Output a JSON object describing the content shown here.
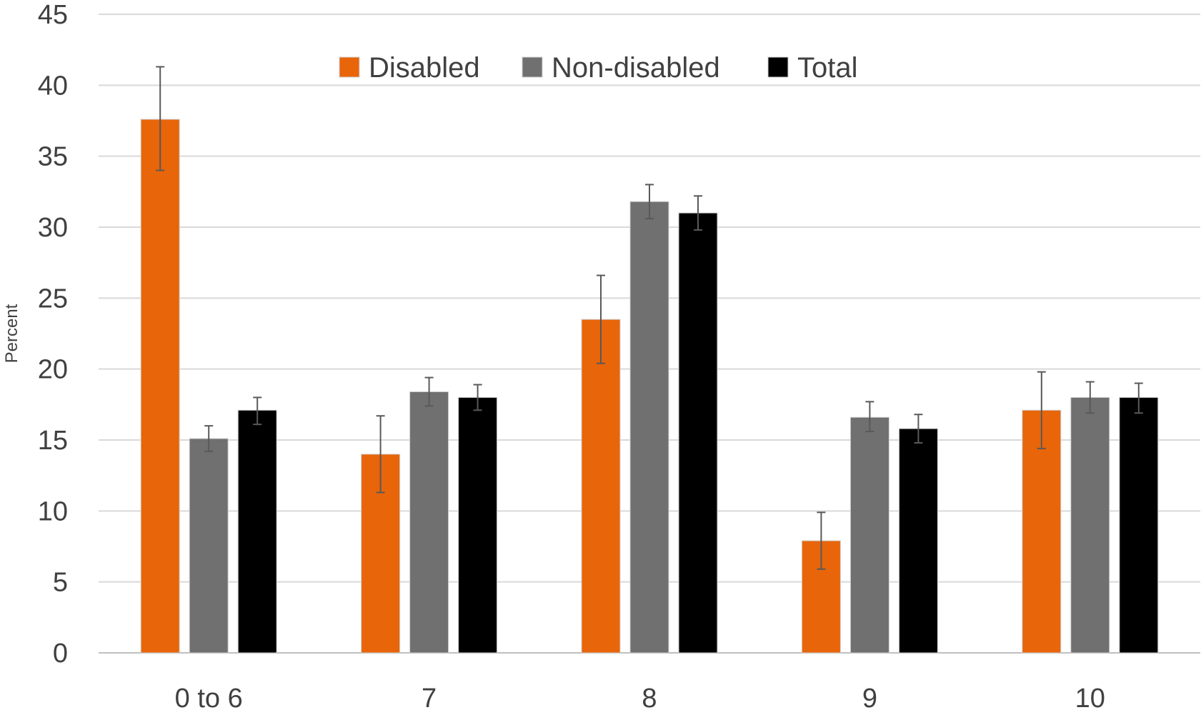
{
  "chart_data": {
    "type": "bar",
    "title": "",
    "xlabel": "",
    "ylabel": "Percent",
    "ylim": [
      0,
      45
    ],
    "yticks": [
      0,
      5,
      10,
      15,
      20,
      25,
      30,
      35,
      40,
      45
    ],
    "grid": true,
    "legend_position": "top",
    "categories": [
      "0 to 6",
      "7",
      "8",
      "9",
      "10"
    ],
    "series": [
      {
        "name": "Disabled",
        "color": "#E8650A",
        "values": [
          37.6,
          14.0,
          23.5,
          7.9,
          17.1
        ],
        "error_low": [
          34.0,
          11.3,
          20.4,
          5.9,
          14.4
        ],
        "error_high": [
          41.3,
          16.7,
          26.6,
          9.9,
          19.8
        ]
      },
      {
        "name": "Non-disabled",
        "color": "#707070",
        "values": [
          15.1,
          18.4,
          31.8,
          16.6,
          18.0
        ],
        "error_low": [
          14.2,
          17.4,
          30.6,
          15.6,
          16.9
        ],
        "error_high": [
          16.0,
          19.4,
          33.0,
          17.7,
          19.1
        ]
      },
      {
        "name": "Total",
        "color": "#000000",
        "values": [
          17.1,
          18.0,
          31.0,
          15.8,
          18.0
        ],
        "error_low": [
          16.1,
          17.1,
          29.8,
          14.8,
          16.9
        ],
        "error_high": [
          18.0,
          18.9,
          32.2,
          16.8,
          19.0
        ]
      }
    ]
  }
}
